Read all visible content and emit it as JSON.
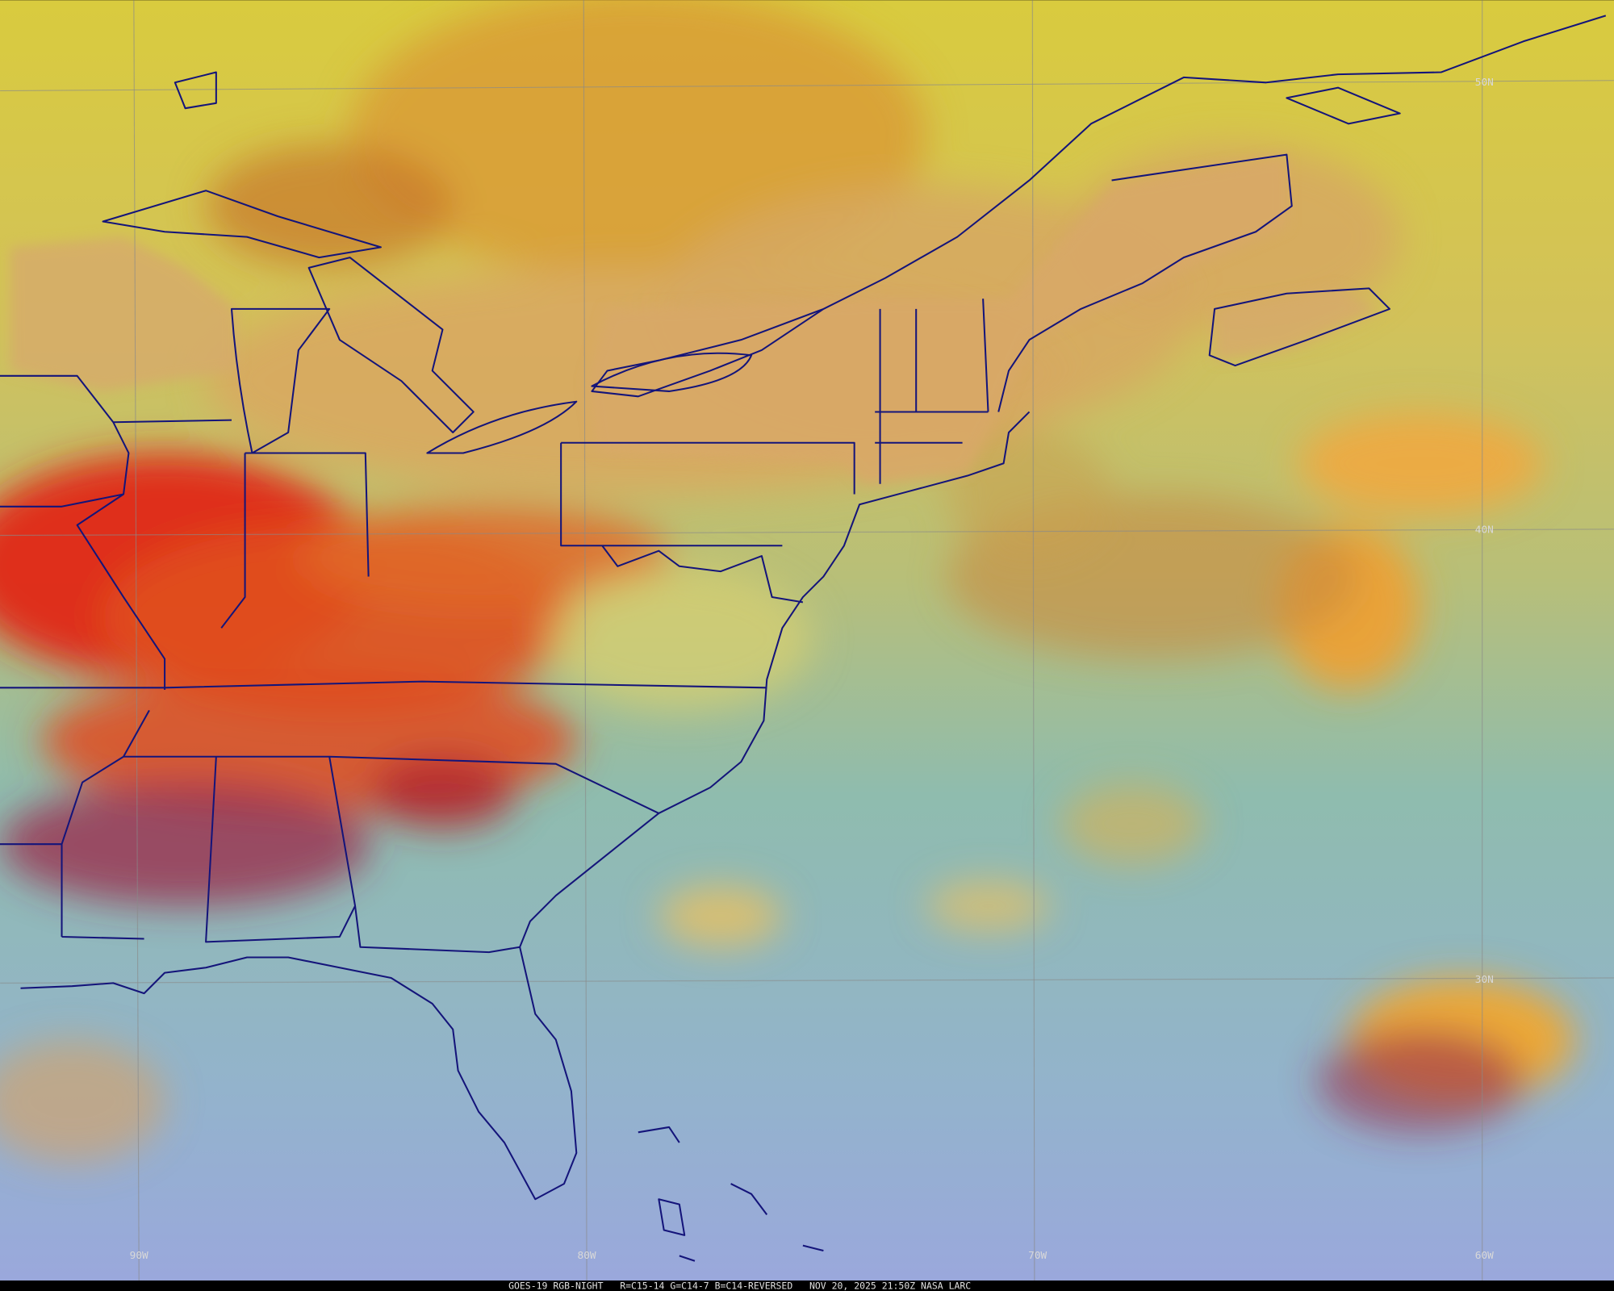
{
  "map": {
    "lat_labels": [
      "50N",
      "40N",
      "30N"
    ],
    "lon_labels": [
      "90W",
      "80W",
      "70W",
      "60W"
    ],
    "footer": "GOES-19 RGB-NIGHT   R=C15-14 G=C14-7 B=C14-REVERSED   NOV 20, 2025 21:50Z NASA LARC"
  }
}
